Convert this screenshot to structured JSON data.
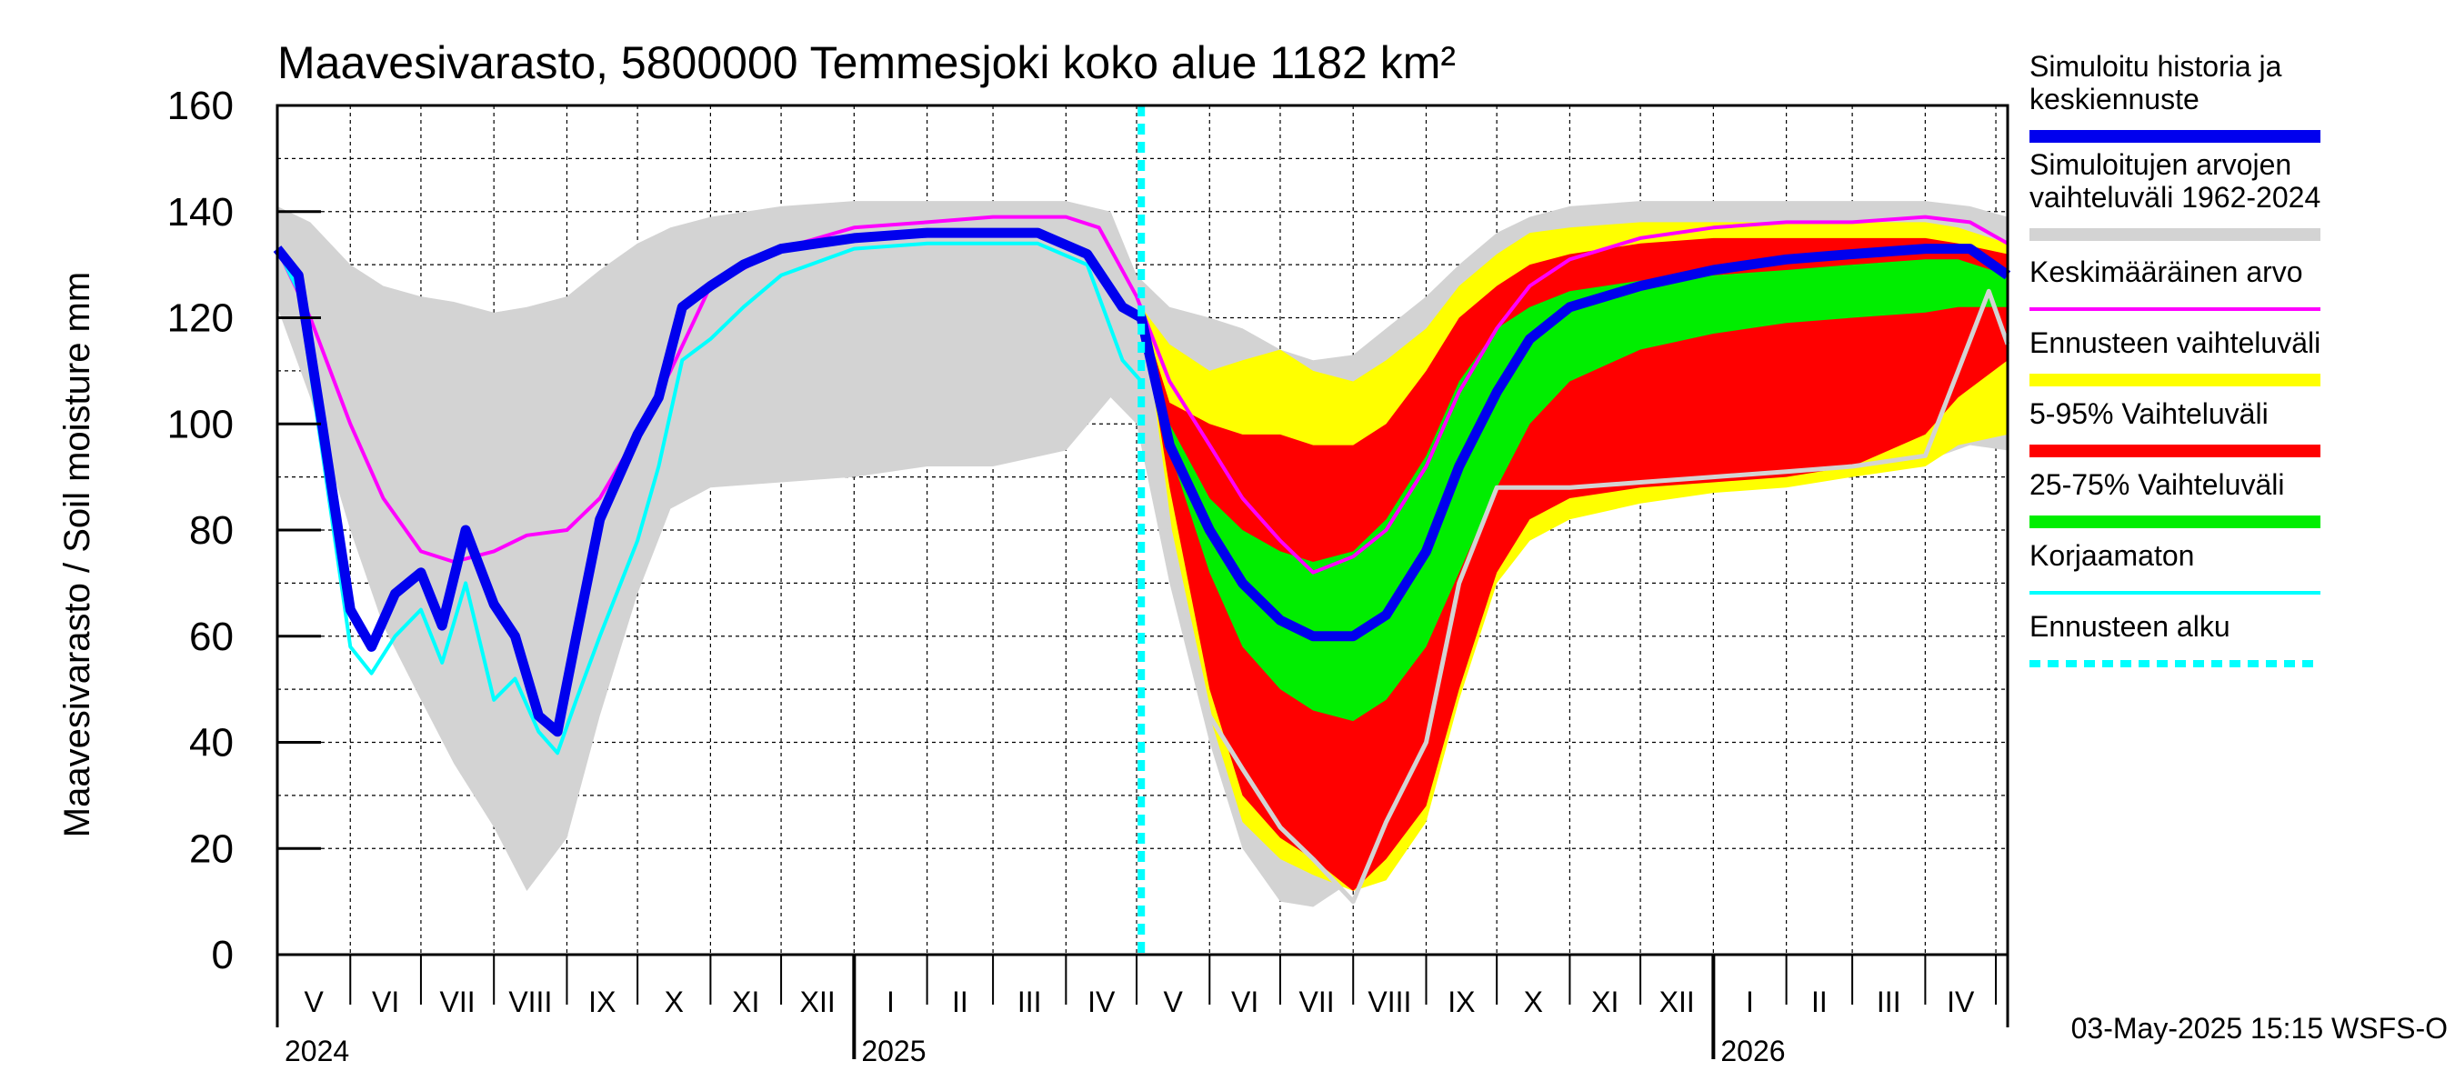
{
  "chart_data": {
    "type": "area",
    "title": "Maavesivarasto, 5800000 Temmesjoki koko alue 1182 km²",
    "ylabel": "Maavesivarasto / Soil moisture   mm",
    "ylim": [
      0,
      160
    ],
    "yticks": [
      "0",
      "20",
      "40",
      "60",
      "80",
      "100",
      "120",
      "140",
      "160"
    ],
    "xlim": [
      "2024-05-01",
      "2026-05-06"
    ],
    "forecast_start": "2025-05-03",
    "grid": true,
    "legend_position": "right",
    "months": [
      "V",
      "VI",
      "VII",
      "VIII",
      "IX",
      "X",
      "XI",
      "XII",
      "I",
      "II",
      "III",
      "IV",
      "V",
      "VI",
      "VII",
      "VIII",
      "IX",
      "X",
      "XI",
      "XII",
      "I",
      "II",
      "III",
      "IV"
    ],
    "years": [
      "2024",
      "2025",
      "2026"
    ],
    "footer": "03-May-2025 15:15 WSFS-O",
    "legend": [
      {
        "label": "Simuloitu historia ja\nkeskiennuste",
        "color": "#0000ee",
        "style": "line"
      },
      {
        "label": "Simuloitujen arvojen\nvaihteluväli 1962-2024",
        "color": "#d3d3d3",
        "style": "line"
      },
      {
        "label": "Keskimääräinen arvo",
        "color": "#ff00ff",
        "style": "line"
      },
      {
        "label": "Ennusteen vaihteluväli",
        "color": "#ffff00",
        "style": "line"
      },
      {
        "label": "5-95% Vaihteluväli",
        "color": "#ff0000",
        "style": "line"
      },
      {
        "label": "25-75% Vaihteluväli",
        "color": "#00ee00",
        "style": "line"
      },
      {
        "label": "Korjaamaton",
        "color": "#00ffff",
        "style": "line"
      },
      {
        "label": "Ennusteen alku",
        "color": "#00ffff",
        "style": "dashed"
      }
    ],
    "series": {
      "hist_range": {
        "name": "Simuloitujen arvojen vaihteluväli 1962-2024",
        "color": "#d3d3d3",
        "x": [
          "2024-05-01",
          "2024-05-15",
          "2024-06-01",
          "2024-06-15",
          "2024-07-01",
          "2024-07-15",
          "2024-08-01",
          "2024-08-15",
          "2024-09-01",
          "2024-09-15",
          "2024-10-01",
          "2024-10-15",
          "2024-11-01",
          "2024-12-01",
          "2025-01-01",
          "2025-02-01",
          "2025-03-01",
          "2025-04-01",
          "2025-04-20",
          "2025-05-01",
          "2025-05-15",
          "2025-06-01",
          "2025-06-15",
          "2025-07-01",
          "2025-07-15",
          "2025-08-01",
          "2025-08-15",
          "2025-09-01",
          "2025-09-15",
          "2025-10-01",
          "2025-10-15",
          "2025-11-01",
          "2025-12-01",
          "2026-01-01",
          "2026-02-01",
          "2026-03-01",
          "2026-04-01",
          "2026-04-20",
          "2026-05-06"
        ],
        "upper": [
          141,
          138,
          130,
          126,
          124,
          123,
          121,
          122,
          124,
          129,
          134,
          137,
          139,
          141,
          142,
          142,
          142,
          142,
          140,
          128,
          122,
          120,
          118,
          114,
          112,
          113,
          118,
          124,
          130,
          136,
          139,
          141,
          142,
          142,
          142,
          142,
          142,
          141,
          139
        ],
        "lower": [
          122,
          105,
          80,
          62,
          48,
          36,
          24,
          12,
          22,
          45,
          68,
          84,
          88,
          89,
          90,
          92,
          92,
          95,
          105,
          100,
          70,
          40,
          20,
          10,
          9,
          14,
          30,
          55,
          76,
          84,
          87,
          89,
          90,
          91,
          92,
          92,
          93,
          96,
          95
        ]
      },
      "forecast_range": {
        "name": "Ennusteen vaihteluväli",
        "color": "#ffff00",
        "x": [
          "2025-05-03",
          "2025-05-15",
          "2025-06-01",
          "2025-06-15",
          "2025-07-01",
          "2025-07-15",
          "2025-08-01",
          "2025-08-15",
          "2025-09-01",
          "2025-09-15",
          "2025-10-01",
          "2025-10-15",
          "2025-11-01",
          "2025-12-01",
          "2026-01-01",
          "2026-02-01",
          "2026-03-01",
          "2026-04-01",
          "2026-04-15",
          "2026-05-06"
        ],
        "upper": [
          122,
          115,
          110,
          112,
          114,
          110,
          108,
          112,
          118,
          126,
          132,
          136,
          137,
          138,
          138,
          138,
          138,
          138,
          137,
          134
        ],
        "lower": [
          122,
          80,
          45,
          25,
          18,
          15,
          12,
          14,
          25,
          48,
          70,
          78,
          82,
          85,
          87,
          88,
          90,
          92,
          96,
          98
        ]
      },
      "p5_95": {
        "name": "5-95% Vaihteluväli",
        "color": "#ff0000",
        "x": [
          "2025-05-03",
          "2025-05-15",
          "2025-06-01",
          "2025-06-15",
          "2025-07-01",
          "2025-07-15",
          "2025-08-01",
          "2025-08-15",
          "2025-09-01",
          "2025-09-15",
          "2025-10-01",
          "2025-10-15",
          "2025-11-01",
          "2025-12-01",
          "2026-01-01",
          "2026-02-01",
          "2026-03-01",
          "2026-04-01",
          "2026-04-15",
          "2026-05-06"
        ],
        "upper": [
          121,
          104,
          100,
          98,
          98,
          96,
          96,
          100,
          110,
          120,
          126,
          130,
          132,
          134,
          135,
          135,
          135,
          135,
          134,
          132
        ],
        "lower": [
          121,
          88,
          50,
          30,
          22,
          18,
          12,
          18,
          28,
          50,
          72,
          82,
          86,
          88,
          89,
          90,
          92,
          98,
          105,
          112
        ]
      },
      "p25_75": {
        "name": "25-75% Vaihteluväli",
        "color": "#00ee00",
        "x": [
          "2025-05-03",
          "2025-05-15",
          "2025-06-01",
          "2025-06-15",
          "2025-07-01",
          "2025-07-15",
          "2025-08-01",
          "2025-08-15",
          "2025-09-01",
          "2025-09-15",
          "2025-10-01",
          "2025-10-15",
          "2025-11-01",
          "2025-12-01",
          "2026-01-01",
          "2026-02-01",
          "2026-03-01",
          "2026-04-01",
          "2026-04-15",
          "2026-05-06"
        ],
        "upper": [
          121,
          100,
          86,
          80,
          76,
          74,
          76,
          82,
          94,
          108,
          118,
          122,
          125,
          127,
          128,
          129,
          130,
          131,
          131,
          128
        ],
        "lower": [
          121,
          95,
          72,
          58,
          50,
          46,
          44,
          48,
          58,
          72,
          88,
          100,
          108,
          114,
          117,
          119,
          120,
          121,
          122,
          122
        ]
      },
      "sim_history": {
        "name": "Simuloitu historia ja keskiennuste",
        "color": "#0000ee",
        "x": [
          "2024-05-01",
          "2024-05-10",
          "2024-05-20",
          "2024-06-01",
          "2024-06-10",
          "2024-06-20",
          "2024-07-01",
          "2024-07-10",
          "2024-07-20",
          "2024-08-01",
          "2024-08-10",
          "2024-08-20",
          "2024-08-28",
          "2024-09-05",
          "2024-09-15",
          "2024-10-01",
          "2024-10-10",
          "2024-10-20",
          "2024-11-01",
          "2024-11-15",
          "2024-12-01",
          "2025-01-01",
          "2025-02-01",
          "2025-03-01",
          "2025-03-20",
          "2025-04-10",
          "2025-04-25",
          "2025-05-03",
          "2025-05-15",
          "2025-06-01",
          "2025-06-15",
          "2025-07-01",
          "2025-07-15",
          "2025-08-01",
          "2025-08-15",
          "2025-09-01",
          "2025-09-15",
          "2025-10-01",
          "2025-10-15",
          "2025-11-01",
          "2025-12-01",
          "2026-01-01",
          "2026-02-01",
          "2026-03-01",
          "2026-04-01",
          "2026-04-20",
          "2026-05-06"
        ],
        "y": [
          133,
          128,
          100,
          65,
          58,
          68,
          72,
          62,
          80,
          66,
          60,
          45,
          42,
          60,
          82,
          98,
          105,
          122,
          126,
          130,
          133,
          135,
          136,
          136,
          136,
          132,
          122,
          120,
          96,
          80,
          70,
          63,
          60,
          60,
          64,
          76,
          92,
          106,
          116,
          122,
          126,
          129,
          131,
          132,
          133,
          133,
          128
        ]
      },
      "mean": {
        "name": "Keskimääräinen arvo",
        "color": "#ff00ff",
        "x": [
          "2024-05-01",
          "2024-05-15",
          "2024-06-01",
          "2024-06-15",
          "2024-07-01",
          "2024-07-15",
          "2024-08-01",
          "2024-08-15",
          "2024-09-01",
          "2024-09-15",
          "2024-10-01",
          "2024-10-15",
          "2024-11-01",
          "2024-12-01",
          "2025-01-01",
          "2025-02-01",
          "2025-03-01",
          "2025-04-01",
          "2025-04-15",
          "2025-05-01",
          "2025-05-15",
          "2025-06-01",
          "2025-06-15",
          "2025-07-01",
          "2025-07-15",
          "2025-08-01",
          "2025-08-15",
          "2025-09-01",
          "2025-09-15",
          "2025-10-01",
          "2025-10-15",
          "2025-11-01",
          "2025-12-01",
          "2026-01-01",
          "2026-02-01",
          "2026-03-01",
          "2026-04-01",
          "2026-04-20",
          "2026-05-06"
        ],
        "y": [
          133,
          120,
          100,
          86,
          76,
          74,
          76,
          79,
          80,
          86,
          98,
          110,
          126,
          133,
          137,
          138,
          139,
          139,
          137,
          124,
          108,
          96,
          86,
          78,
          72,
          75,
          80,
          92,
          106,
          118,
          126,
          131,
          135,
          137,
          138,
          138,
          139,
          138,
          134
        ]
      },
      "uncorrected": {
        "name": "Korjaamaton",
        "color": "#00ffff",
        "x": [
          "2024-05-01",
          "2024-05-10",
          "2024-05-20",
          "2024-06-01",
          "2024-06-10",
          "2024-06-20",
          "2024-07-01",
          "2024-07-10",
          "2024-07-20",
          "2024-08-01",
          "2024-08-10",
          "2024-08-20",
          "2024-08-28",
          "2024-09-05",
          "2024-09-15",
          "2024-10-01",
          "2024-10-10",
          "2024-10-20",
          "2024-11-01",
          "2024-11-15",
          "2024-12-01",
          "2025-01-01",
          "2025-02-01",
          "2025-03-01",
          "2025-03-20",
          "2025-04-10",
          "2025-04-25",
          "2025-05-03"
        ],
        "y": [
          133,
          125,
          95,
          58,
          53,
          60,
          65,
          55,
          70,
          48,
          52,
          42,
          38,
          48,
          60,
          78,
          92,
          112,
          116,
          122,
          128,
          133,
          134,
          134,
          134,
          130,
          112,
          108
        ]
      },
      "uncorrected_forecast": {
        "name": "Korjaamaton ennuste",
        "color": "#d3d3d3",
        "x": [
          "2025-05-03",
          "2025-05-15",
          "2025-06-01",
          "2025-06-15",
          "2025-07-01",
          "2025-07-15",
          "2025-08-01",
          "2025-08-15",
          "2025-09-01",
          "2025-09-15",
          "2025-10-01",
          "2025-10-15",
          "2025-11-01",
          "2025-12-01",
          "2026-01-01",
          "2026-02-01",
          "2026-03-01",
          "2026-04-01",
          "2026-04-15",
          "2026-04-28",
          "2026-05-06"
        ],
        "y": [
          120,
          80,
          45,
          35,
          24,
          18,
          10,
          25,
          40,
          70,
          88,
          88,
          88,
          89,
          90,
          91,
          92,
          94,
          110,
          125,
          115
        ]
      }
    }
  }
}
